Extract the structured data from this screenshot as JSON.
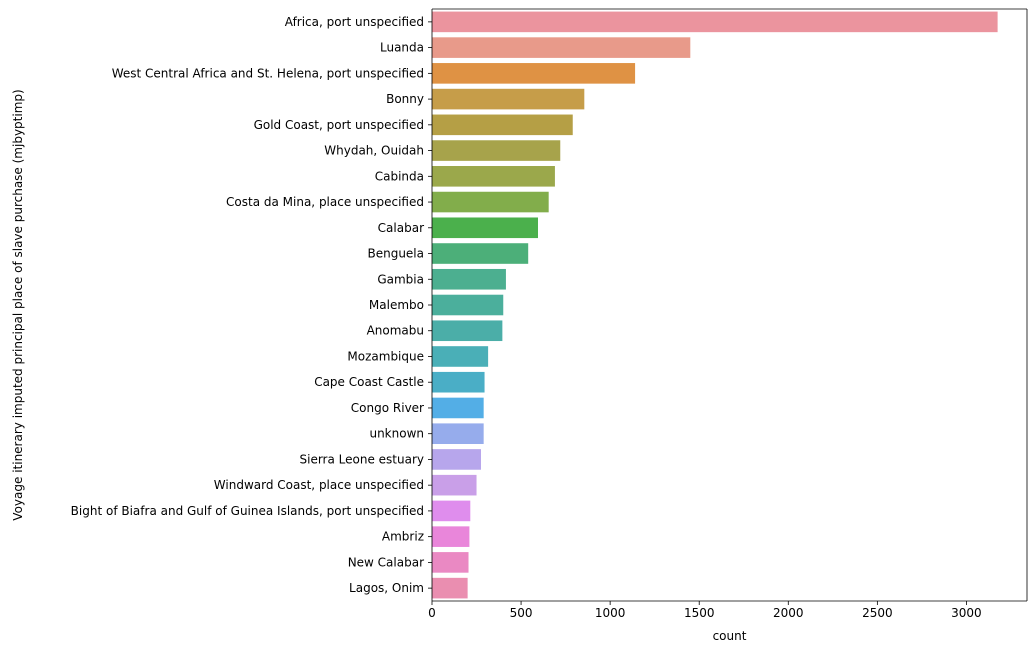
{
  "chart_data": {
    "type": "bar",
    "orientation": "horizontal",
    "title": "",
    "xlabel": "count",
    "ylabel": "Voyage itinerary imputed principal place of slave purchase (mjbyptimp)",
    "xlim": [
      0,
      3340
    ],
    "xticks": [
      0,
      500,
      1000,
      1500,
      2000,
      2500,
      3000
    ],
    "grid": false,
    "categories": [
      "Africa, port unspecified",
      "Luanda",
      "West Central Africa and St. Helena, port unspecified",
      "Bonny",
      "Gold Coast, port unspecified",
      "Whydah, Ouidah",
      "Cabinda",
      "Costa da Mina, place unspecified",
      "Calabar",
      "Benguela",
      "Gambia",
      "Malembo",
      "Anomabu",
      "Mozambique",
      "Cape Coast Castle",
      "Congo River",
      "unknown",
      "Sierra Leone estuary",
      "Windward Coast, place unspecified",
      "Bight of Biafra and Gulf of Guinea Islands, port unspecified",
      "Ambriz",
      "New Calabar",
      "Lagos, Onim"
    ],
    "values": [
      3175,
      1450,
      1140,
      855,
      790,
      720,
      690,
      655,
      595,
      540,
      415,
      400,
      395,
      315,
      295,
      290,
      290,
      275,
      250,
      215,
      210,
      205,
      200
    ],
    "colors": [
      "#eb949e",
      "#e89a8a",
      "#df9244",
      "#c69d49",
      "#b59f45",
      "#a7a34b",
      "#9ba84b",
      "#82ad4b",
      "#4bb04c",
      "#4caf79",
      "#4caf90",
      "#4baf9c",
      "#4baea8",
      "#4aafb7",
      "#4aaec6",
      "#53aee6",
      "#96acec",
      "#b7a6ec",
      "#c99fe8",
      "#df8ded",
      "#e986da",
      "#ea89c3",
      "#ea8eb0"
    ]
  }
}
